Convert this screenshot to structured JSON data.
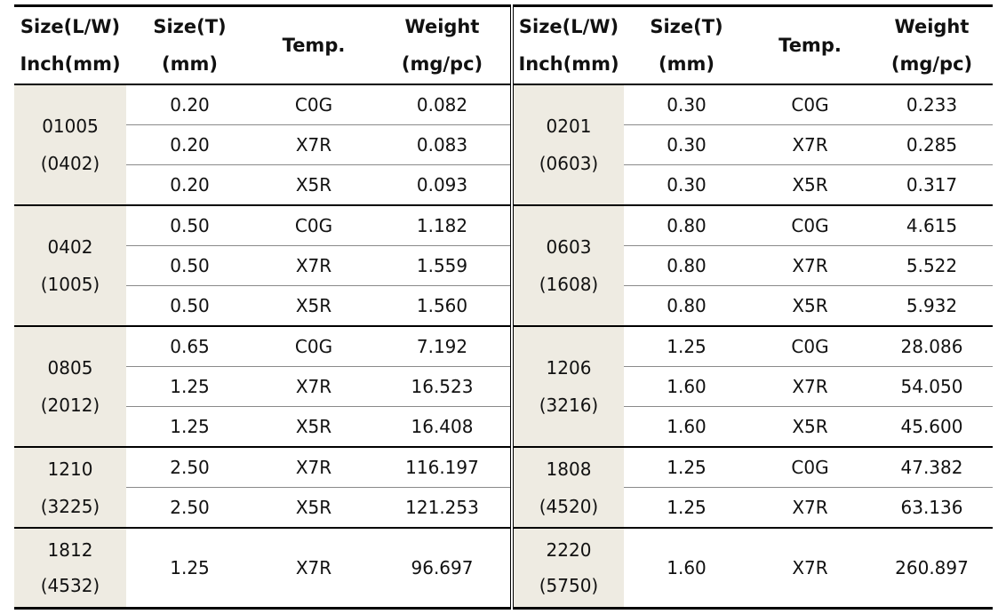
{
  "headers": {
    "size_lw": [
      "Size(L/W)",
      "Inch(mm)"
    ],
    "size_t": [
      "Size(T)",
      "(mm)"
    ],
    "temp": "Temp.",
    "weight": [
      "Weight",
      "(mg/pc)"
    ]
  },
  "groups": [
    {
      "left": {
        "size": [
          "01005",
          "(0402)"
        ],
        "rows": [
          {
            "t": "0.20",
            "temp": "C0G",
            "w": "0.082"
          },
          {
            "t": "0.20",
            "temp": "X7R",
            "w": "0.083"
          },
          {
            "t": "0.20",
            "temp": "X5R",
            "w": "0.093"
          }
        ]
      },
      "right": {
        "size": [
          "0201",
          "(0603)"
        ],
        "rows": [
          {
            "t": "0.30",
            "temp": "C0G",
            "w": "0.233"
          },
          {
            "t": "0.30",
            "temp": "X7R",
            "w": "0.285"
          },
          {
            "t": "0.30",
            "temp": "X5R",
            "w": "0.317"
          }
        ]
      }
    },
    {
      "left": {
        "size": [
          "0402",
          "(1005)"
        ],
        "rows": [
          {
            "t": "0.50",
            "temp": "C0G",
            "w": "1.182"
          },
          {
            "t": "0.50",
            "temp": "X7R",
            "w": "1.559"
          },
          {
            "t": "0.50",
            "temp": "X5R",
            "w": "1.560"
          }
        ]
      },
      "right": {
        "size": [
          "0603",
          "(1608)"
        ],
        "rows": [
          {
            "t": "0.80",
            "temp": "C0G",
            "w": "4.615"
          },
          {
            "t": "0.80",
            "temp": "X7R",
            "w": "5.522"
          },
          {
            "t": "0.80",
            "temp": "X5R",
            "w": "5.932"
          }
        ]
      }
    },
    {
      "left": {
        "size": [
          "0805",
          "(2012)"
        ],
        "rows": [
          {
            "t": "0.65",
            "temp": "C0G",
            "w": "7.192"
          },
          {
            "t": "1.25",
            "temp": "X7R",
            "w": "16.523"
          },
          {
            "t": "1.25",
            "temp": "X5R",
            "w": "16.408"
          }
        ]
      },
      "right": {
        "size": [
          "1206",
          "(3216)"
        ],
        "rows": [
          {
            "t": "1.25",
            "temp": "C0G",
            "w": "28.086"
          },
          {
            "t": "1.60",
            "temp": "X7R",
            "w": "54.050"
          },
          {
            "t": "1.60",
            "temp": "X5R",
            "w": "45.600"
          }
        ]
      }
    },
    {
      "left": {
        "size": [
          "1210",
          "(3225)"
        ],
        "rows": [
          {
            "t": "2.50",
            "temp": "X7R",
            "w": "116.197"
          },
          {
            "t": "2.50",
            "temp": "X5R",
            "w": "121.253"
          }
        ]
      },
      "right": {
        "size": [
          "1808",
          "(4520)"
        ],
        "rows": [
          {
            "t": "1.25",
            "temp": "C0G",
            "w": "47.382"
          },
          {
            "t": "1.25",
            "temp": "X7R",
            "w": "63.136"
          }
        ]
      }
    },
    {
      "left": {
        "size": [
          "1812",
          "(4532)"
        ],
        "rows": [
          {
            "t": "1.25",
            "temp": "X7R",
            "w": "96.697"
          }
        ]
      },
      "right": {
        "size": [
          "2220",
          "(5750)"
        ],
        "rows": [
          {
            "t": "1.60",
            "temp": "X7R",
            "w": "260.897"
          }
        ]
      }
    }
  ],
  "colors": {
    "size_cell_bg": "#eeebe2",
    "rule": "#000000",
    "inner_line": "#8a8a8a"
  }
}
